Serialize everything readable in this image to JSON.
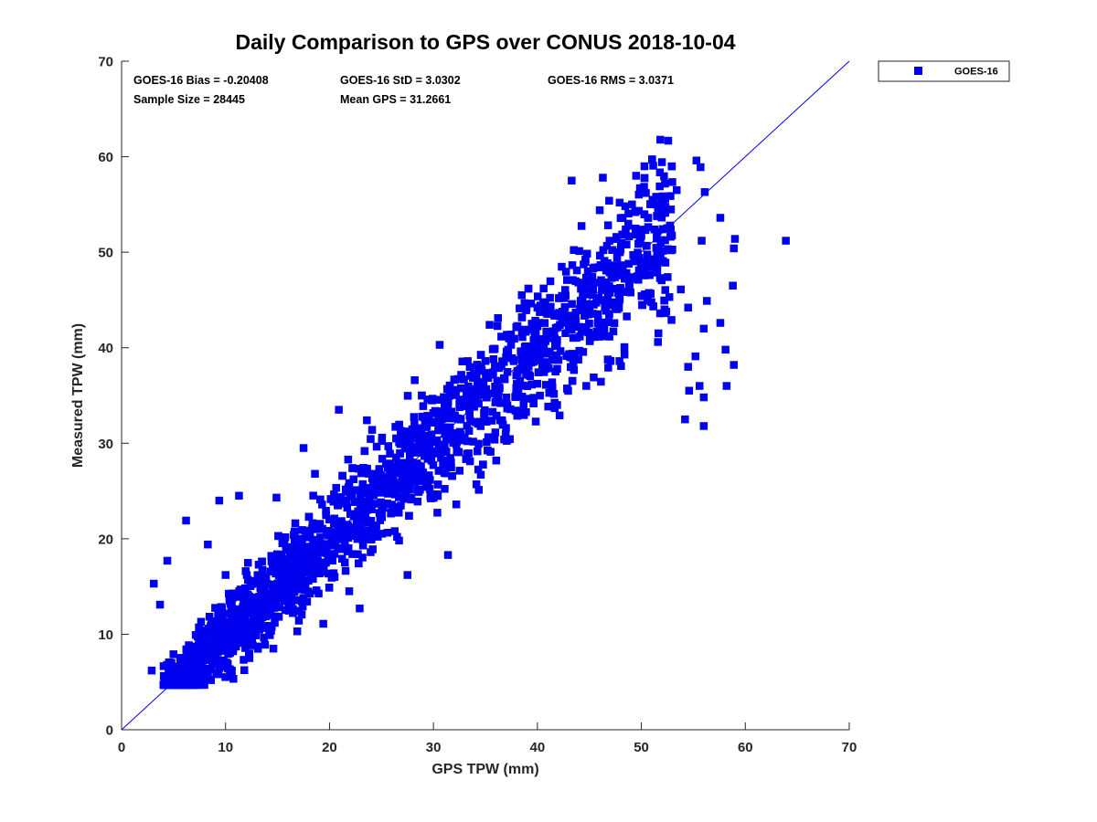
{
  "chart_data": {
    "type": "scatter",
    "title": "Daily Comparison to GPS over CONUS 2018-10-04",
    "xlabel": "GPS TPW (mm)",
    "ylabel": "Measured TPW (mm)",
    "xlim": [
      0,
      70
    ],
    "ylim": [
      0,
      70
    ],
    "xticks": [
      0,
      10,
      20,
      30,
      40,
      50,
      60,
      70
    ],
    "yticks": [
      0,
      10,
      20,
      30,
      40,
      50,
      60,
      70
    ],
    "grid": false,
    "legend_position": "outside-top-right",
    "series": [
      {
        "name": "GOES-16",
        "color": "#0000ee",
        "marker": "square",
        "sample_size": 28445,
        "bias": -0.20408,
        "std": 3.0302,
        "rms": 3.0371,
        "mean_gps": 31.2661,
        "outliers": [
          [
            63.9,
            51.2
          ],
          [
            59.0,
            51.4
          ],
          [
            58.9,
            50.4
          ],
          [
            58.8,
            46.5
          ],
          [
            58.9,
            38.2
          ],
          [
            58.2,
            36.0
          ],
          [
            58.1,
            39.8
          ],
          [
            57.6,
            53.6
          ],
          [
            57.6,
            42.6
          ],
          [
            56.1,
            56.3
          ],
          [
            55.7,
            58.9
          ],
          [
            55.3,
            59.6
          ],
          [
            55.8,
            51.2
          ],
          [
            56.3,
            44.9
          ],
          [
            56.0,
            42.0
          ],
          [
            55.6,
            36.0
          ],
          [
            56.0,
            34.8
          ],
          [
            56.0,
            31.8
          ],
          [
            55.2,
            39.1
          ],
          [
            54.5,
            44.2
          ],
          [
            54.6,
            35.5
          ],
          [
            54.2,
            32.5
          ],
          [
            54.5,
            38.0
          ],
          [
            50.3,
            59.0
          ],
          [
            49.5,
            58.0
          ],
          [
            43.3,
            57.5
          ],
          [
            46.3,
            57.8
          ],
          [
            49.1,
            55.0
          ],
          [
            46.0,
            54.4
          ],
          [
            2.9,
            6.2
          ],
          [
            3.1,
            15.3
          ],
          [
            3.7,
            13.1
          ],
          [
            4.4,
            17.7
          ],
          [
            6.2,
            21.9
          ],
          [
            9.4,
            24.0
          ],
          [
            11.3,
            24.5
          ],
          [
            17.5,
            29.5
          ],
          [
            20.9,
            33.5
          ],
          [
            23.6,
            32.4
          ],
          [
            30.6,
            40.3
          ],
          [
            35.4,
            42.4
          ],
          [
            43.2,
            43.3
          ],
          [
            36.4,
            32.4
          ],
          [
            32.2,
            23.6
          ],
          [
            27.5,
            16.2
          ],
          [
            21.9,
            14.5
          ],
          [
            16.9,
            10.3
          ],
          [
            8.6,
            5.2
          ],
          [
            12.3,
            7.5
          ],
          [
            14.6,
            8.5
          ],
          [
            19.4,
            11.1
          ],
          [
            31.4,
            18.3
          ],
          [
            36.8,
            30.4
          ],
          [
            44.7,
            36.0
          ],
          [
            38.6,
            33.4
          ],
          [
            22.9,
            12.7
          ],
          [
            26.5,
            20.2
          ],
          [
            41.9,
            34.0
          ],
          [
            47.9,
            38.6
          ],
          [
            51.6,
            40.6
          ],
          [
            52.7,
            45.3
          ],
          [
            52.3,
            55.6
          ],
          [
            53.4,
            56.5
          ],
          [
            52.1,
            54.1
          ],
          [
            50.8,
            47.6
          ],
          [
            52.9,
            42.9
          ],
          [
            51.8,
            43.6
          ],
          [
            53.8,
            46.1
          ],
          [
            8.3,
            19.4
          ],
          [
            10.0,
            16.2
          ],
          [
            14.9,
            24.3
          ],
          [
            18.6,
            26.8
          ],
          [
            24.1,
            31.4
          ],
          [
            28.2,
            36.6
          ],
          [
            33.3,
            38.6
          ],
          [
            38.5,
            45.5
          ],
          [
            40.6,
            46.2
          ],
          [
            45.5,
            48.4
          ],
          [
            48.0,
            50.3
          ],
          [
            35.5,
            29.1
          ]
        ]
      }
    ],
    "stats_text": {
      "bias": "GOES-16 Bias = -0.20408",
      "std": "GOES-16 StD = 3.0302",
      "rms": "GOES-16 RMS = 3.0371",
      "n": "Sample Size = 28445",
      "mean": "Mean GPS = 31.2661"
    },
    "legend_label": "GOES-16",
    "reference_line": "one-to-one"
  }
}
